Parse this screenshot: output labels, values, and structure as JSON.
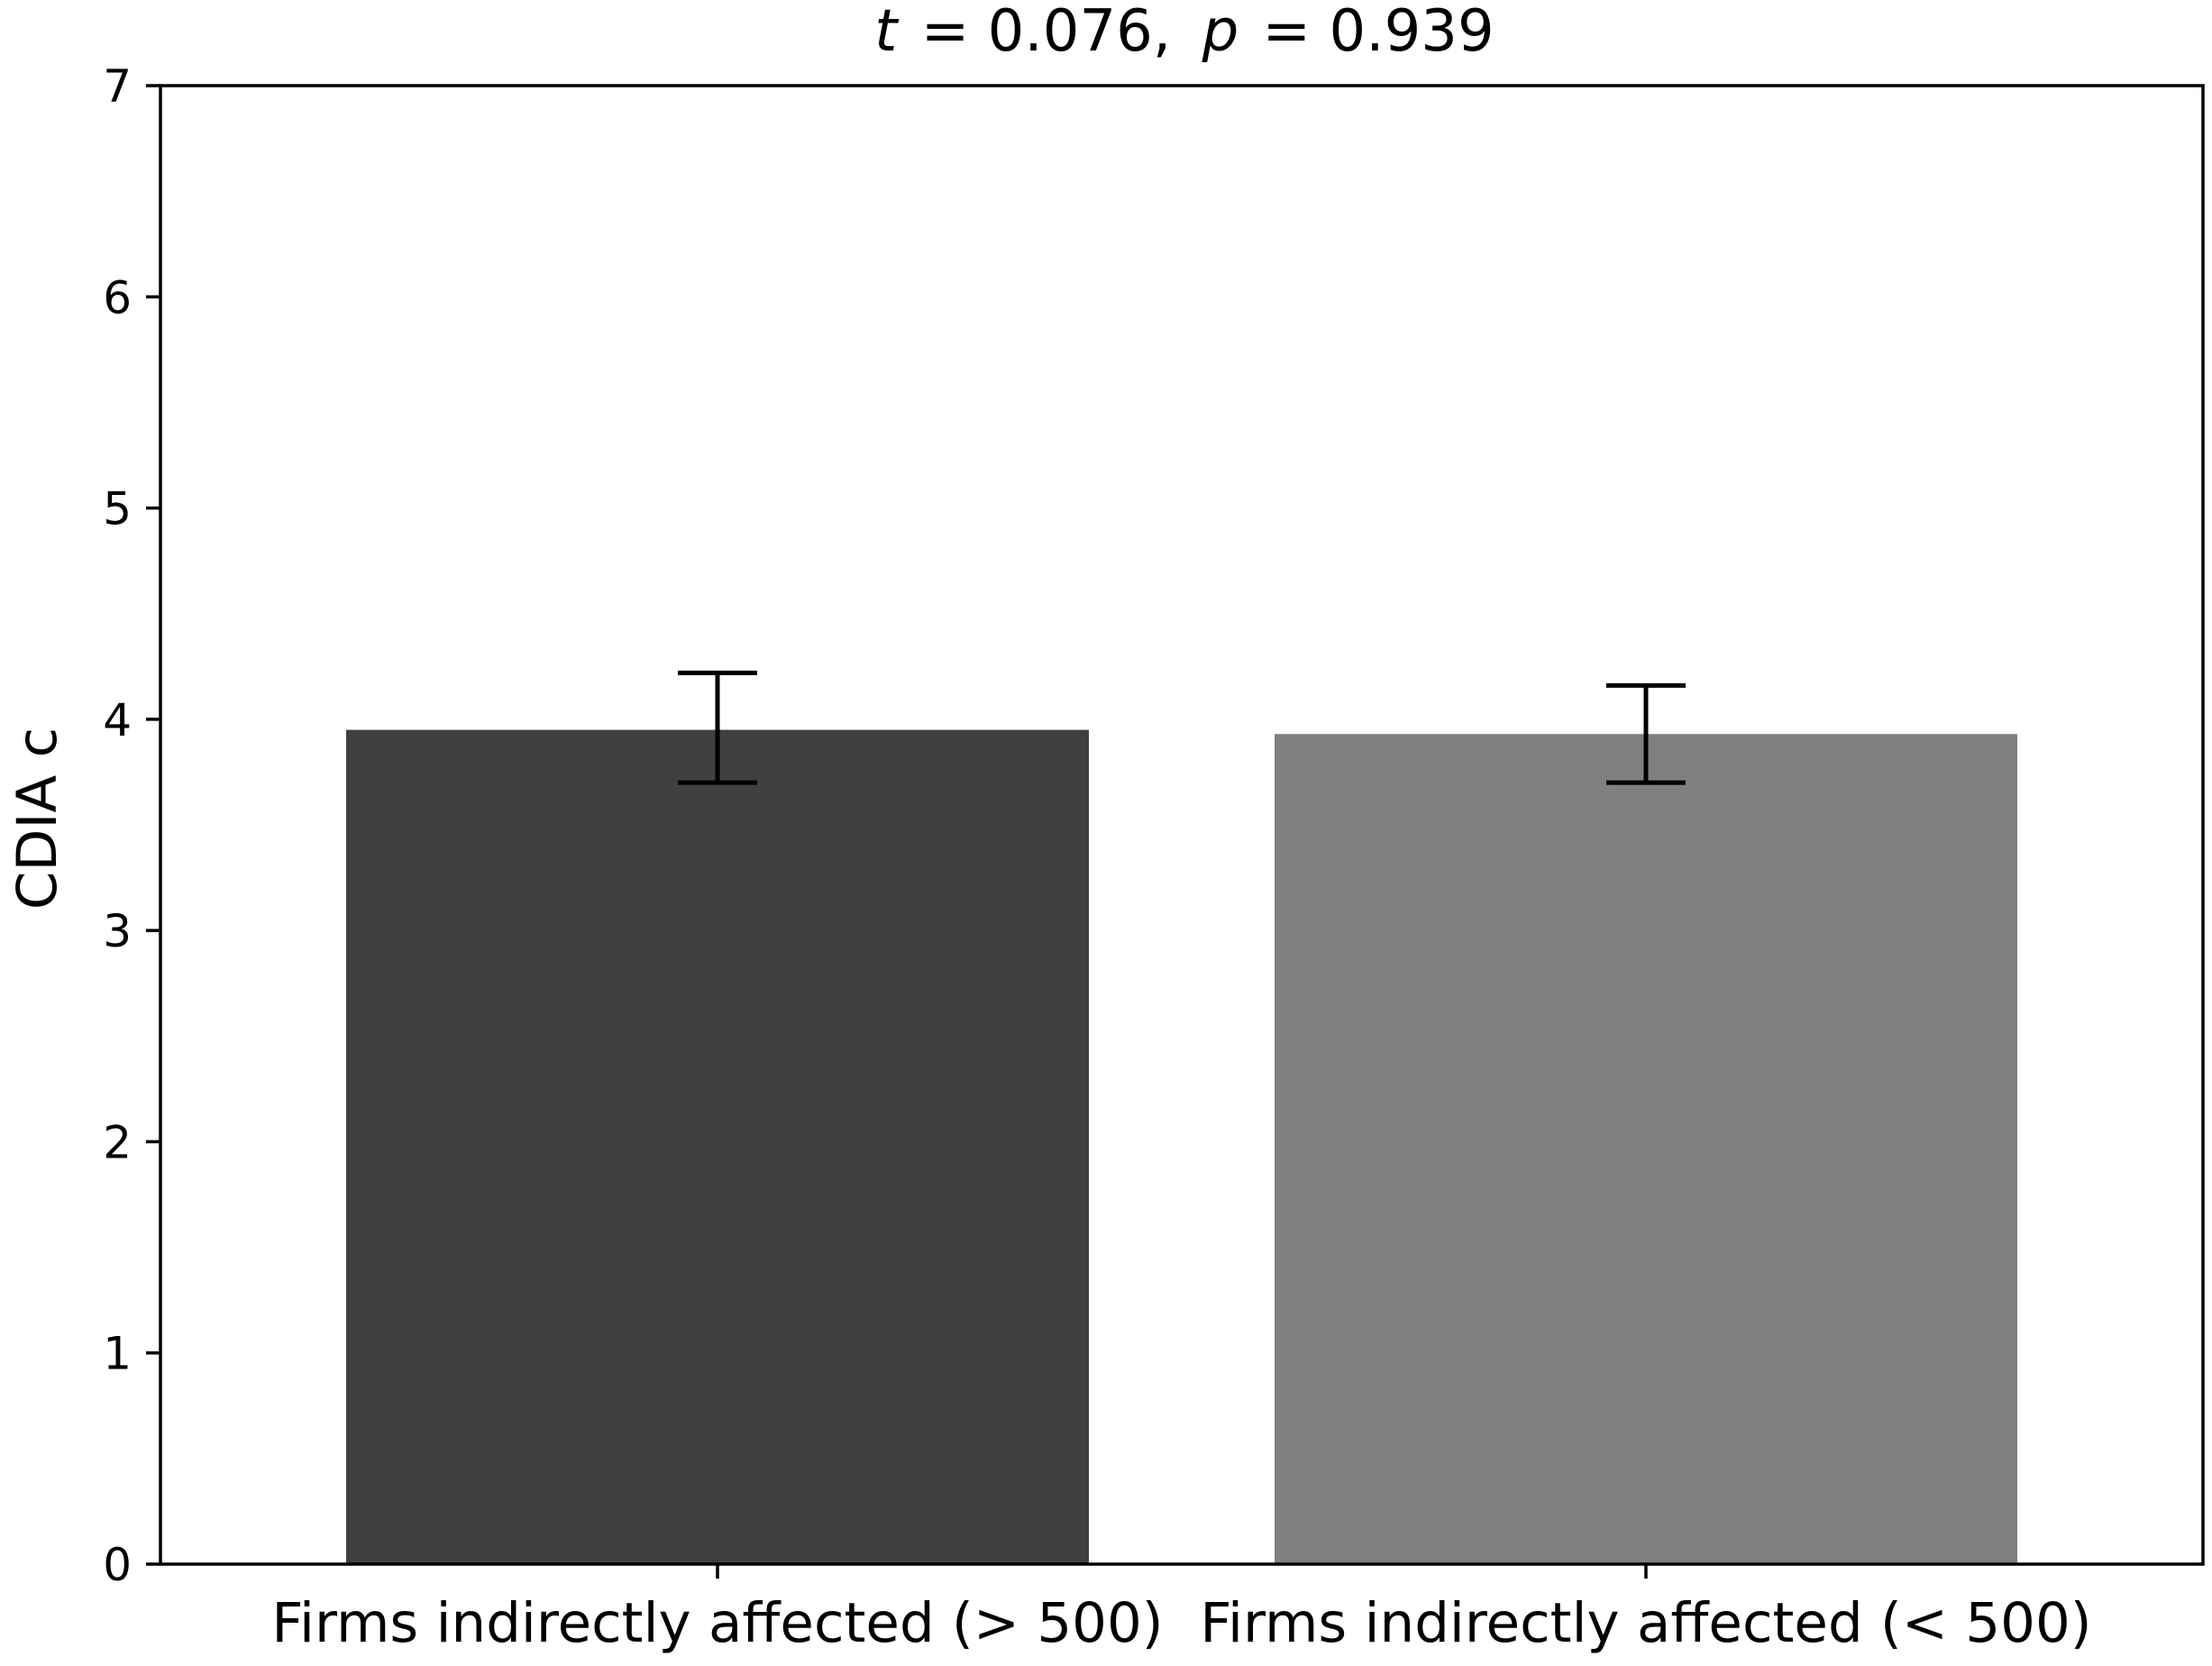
{
  "chart_data": {
    "type": "bar",
    "title": {
      "t_symbol": "t",
      "t_value": "= 0.076,",
      "p_symbol": "p",
      "p_value": "= 0.939"
    },
    "xlabel": "",
    "ylabel": "CDIA c",
    "categories": [
      "Firms indirectly affected (> 500)",
      "Firms indirectly affected (< 500)"
    ],
    "values": [
      3.95,
      3.93
    ],
    "error_low": [
      3.7,
      3.7
    ],
    "error_high": [
      4.22,
      4.16
    ],
    "colors": [
      "#404040",
      "#808080"
    ],
    "ylim": [
      0,
      7
    ],
    "yticks": [
      "0",
      "1",
      "2",
      "3",
      "4",
      "5",
      "6",
      "7"
    ],
    "grid": false,
    "legend": "none"
  }
}
